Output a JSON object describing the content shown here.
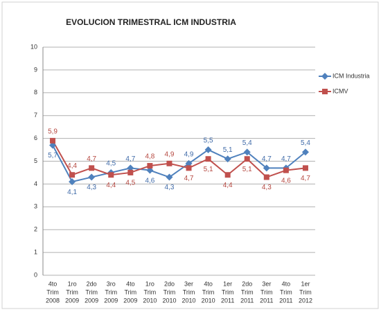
{
  "chart_data": {
    "type": "line",
    "title": "EVOLUCION TRIMESTRAL ICM INDUSTRIA",
    "categories": [
      [
        "4to",
        "Trim",
        "2008"
      ],
      [
        "1ro",
        "Trim",
        "2009"
      ],
      [
        "2do",
        "Trim",
        "2009"
      ],
      [
        "3ro",
        "Trim",
        "2009"
      ],
      [
        "4to",
        "Trim",
        "2009"
      ],
      [
        "1ro",
        "Trim",
        "2010"
      ],
      [
        "2do",
        "Trim",
        "2010"
      ],
      [
        "3er",
        "Trim",
        "2010"
      ],
      [
        "4to",
        "Trim",
        "2010"
      ],
      [
        "1er",
        "Trim",
        "2011"
      ],
      [
        "2do",
        "Trim",
        "2011"
      ],
      [
        "3er",
        "Trim",
        "2011"
      ],
      [
        "4to",
        "Trim",
        "2011"
      ],
      [
        "1er",
        "Trim",
        "2012"
      ]
    ],
    "series": [
      {
        "name": "ICM Industria",
        "color": "#4f81bd",
        "label_color": "#3f6aa8",
        "marker": "diamond",
        "values": [
          5.7,
          4.1,
          4.3,
          4.5,
          4.7,
          4.6,
          4.3,
          4.9,
          5.5,
          5.1,
          5.4,
          4.7,
          4.7,
          5.4
        ],
        "value_labels": [
          "5,7",
          "4,1",
          "4,3",
          "4,5",
          "4,7",
          "4,6",
          "4,3",
          "4,9",
          "5,5",
          "5,1",
          "5,4",
          "4,7",
          "4,7",
          "5,4"
        ]
      },
      {
        "name": "ICMV",
        "color": "#c0504d",
        "label_color": "#b5473f",
        "marker": "square",
        "values": [
          5.9,
          4.4,
          4.7,
          4.4,
          4.5,
          4.8,
          4.9,
          4.7,
          5.1,
          4.4,
          5.1,
          4.3,
          4.6,
          4.7
        ],
        "value_labels": [
          "5,9",
          "4,4",
          "4,7",
          "4,4",
          "4,5",
          "4,8",
          "4,9",
          "4,7",
          "5,1",
          "4,4",
          "5,1",
          "4,3",
          "4,6",
          "4,7"
        ]
      }
    ],
    "ylim": [
      0,
      10
    ],
    "yticks": [
      0,
      1,
      2,
      3,
      4,
      5,
      6,
      7,
      8,
      9,
      10
    ],
    "grid": true,
    "legend": "right"
  }
}
